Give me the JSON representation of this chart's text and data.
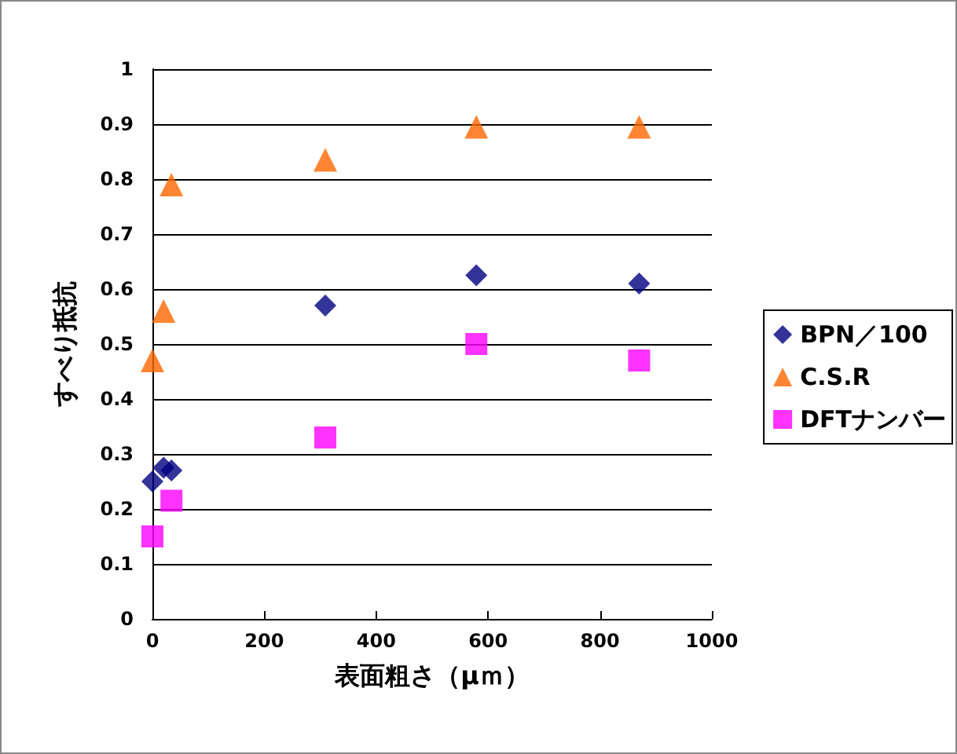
{
  "chart_data": {
    "type": "scatter",
    "xlabel": "表面粗さ（μｍ）",
    "ylabel": "すべり抵抗",
    "series": [
      {
        "name": "BPN／100",
        "color": "#000080",
        "marker": "diamond",
        "x": [
          0,
          20,
          34,
          309,
          579,
          870
        ],
        "values": [
          0.25,
          0.275,
          0.27,
          0.57,
          0.625,
          0.61
        ]
      },
      {
        "name": "C.S.R",
        "color": "#ff6600",
        "marker": "triangle",
        "x": [
          0,
          20,
          34,
          309,
          579,
          870
        ],
        "values": [
          0.47,
          0.56,
          0.79,
          0.835,
          0.895,
          0.895
        ]
      },
      {
        "name": "DFTナンバー",
        "color": "#ff00ff",
        "marker": "square",
        "x": [
          0,
          34,
          309,
          579,
          870
        ],
        "values": [
          0.15,
          0.215,
          0.33,
          0.5,
          0.47
        ]
      }
    ],
    "xlim": [
      0,
      1000
    ],
    "xticks": [
      0,
      200,
      400,
      600,
      800,
      1000
    ],
    "ylim": [
      0,
      1
    ],
    "yticks": [
      0,
      0.1,
      0.2,
      0.3,
      0.4,
      0.5,
      0.6,
      0.7,
      0.8,
      0.9,
      1
    ],
    "grid": "y",
    "legend": "right"
  }
}
